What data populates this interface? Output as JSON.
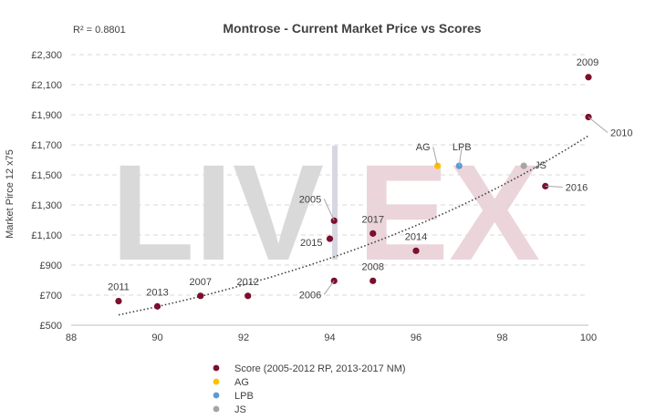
{
  "chart_data": {
    "type": "scatter",
    "title": "Montrose - Current Market Price vs Scores",
    "r_squared_label": "R² = 0.8801",
    "ylabel": "Market Pirce 12 x75",
    "xlabel": "",
    "xlim": [
      88,
      100
    ],
    "ylim": [
      500,
      2300
    ],
    "x_ticks": [
      "88",
      "90",
      "92",
      "94",
      "96",
      "98",
      "100"
    ],
    "y_ticks": [
      "£500",
      "£700",
      "£900",
      "£1,100",
      "£1,300",
      "£1,500",
      "£1,700",
      "£1,900",
      "£2,100",
      "£2,300"
    ],
    "grid": "horizontal dashed",
    "legend_position": "bottom",
    "watermark": "LIV-EX",
    "trendline": {
      "type": "exponential",
      "style": "dotted"
    },
    "series": [
      {
        "name": "Score (2005-2012 RP, 2013-2017 NM)",
        "color": "#7b0f2d",
        "points": [
          {
            "label": "2011",
            "x": 89.1,
            "y": 660
          },
          {
            "label": "2013",
            "x": 90.0,
            "y": 625
          },
          {
            "label": "2007",
            "x": 91.0,
            "y": 695
          },
          {
            "label": "2012",
            "x": 92.1,
            "y": 695
          },
          {
            "label": "2006",
            "x": 94.1,
            "y": 795
          },
          {
            "label": "2008",
            "x": 95.0,
            "y": 795
          },
          {
            "label": "2014",
            "x": 96.0,
            "y": 995
          },
          {
            "label": "2015",
            "x": 94.0,
            "y": 1075
          },
          {
            "label": "2017",
            "x": 95.0,
            "y": 1110
          },
          {
            "label": "2005",
            "x": 94.1,
            "y": 1195
          },
          {
            "label": "2016",
            "x": 99.0,
            "y": 1425
          },
          {
            "label": "2010",
            "x": 100.0,
            "y": 1885
          },
          {
            "label": "2009",
            "x": 100.0,
            "y": 2150
          }
        ]
      },
      {
        "name": "AG",
        "color": "#ffc000",
        "points": [
          {
            "label": "AG",
            "x": 96.5,
            "y": 1560
          }
        ]
      },
      {
        "name": "LPB",
        "color": "#5b9bd5",
        "points": [
          {
            "label": "LPB",
            "x": 97.0,
            "y": 1560
          }
        ]
      },
      {
        "name": "JS",
        "color": "#a5a5a5",
        "points": [
          {
            "label": "JS",
            "x": 98.5,
            "y": 1560
          }
        ]
      }
    ]
  }
}
